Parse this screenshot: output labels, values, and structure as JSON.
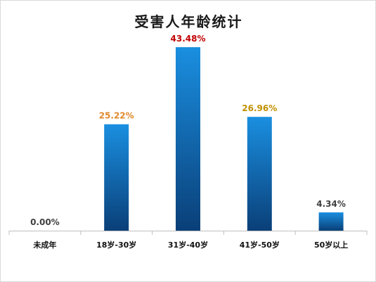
{
  "chart_data": {
    "type": "bar",
    "title": "受害人年龄统计",
    "xlabel": "",
    "ylabel": "",
    "categories": [
      "未成年",
      "18岁-30岁",
      "31岁-40岁",
      "41岁-50岁",
      "50岁以上"
    ],
    "values": [
      0.0,
      25.22,
      43.48,
      26.96,
      4.34
    ],
    "data_labels": [
      "0.00%",
      "25.22%",
      "43.48%",
      "26.96%",
      "4.34%"
    ],
    "label_colors": [
      "#404040",
      "#e0892a",
      "#c00000",
      "#c09000",
      "#404040"
    ],
    "ylim": [
      0,
      50
    ],
    "grid": false,
    "legend": "none",
    "bar_color_top": "#1a8fe0",
    "bar_color_bottom": "#0a3f78"
  }
}
